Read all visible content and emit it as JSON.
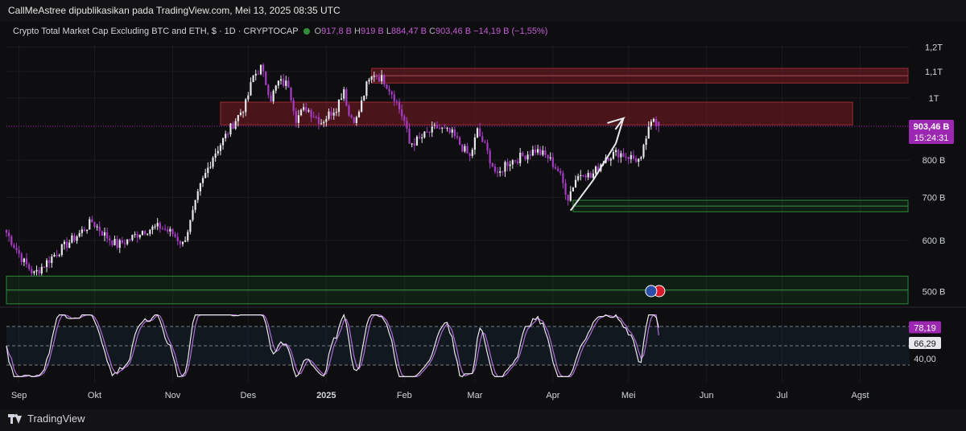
{
  "header": {
    "publisher_line": "CallMeAstree dipublikasikan pada TradingView.com, Mei 13, 2025 08:35 UTC"
  },
  "legend": {
    "symbol": "Crypto Total Market Cap Excluding BTC and ETH, $ · 1D · CRYPTOCAP",
    "o_label": "O",
    "o_value": "917,8 B",
    "h_label": "H",
    "h_value": "919 B",
    "l_label": "L",
    "l_value": "884,47 B",
    "c_label": "C",
    "c_value": "903,46 B",
    "change": "−14,19 B (−1,55%)"
  },
  "footer": {
    "brand": "TradingView"
  },
  "colors": {
    "background": "#0e0e10",
    "up_candle": "#e8e8ec",
    "down_candle": "#a93bc8",
    "resistance_zone": "#7a1c24",
    "support_zone": "#1b6e25",
    "price_label": "#9c27b0",
    "stoch_k": "#e8e8ec",
    "stoch_d": "#b26bd9",
    "arrow": "#e8e8ec"
  },
  "chart_data": [
    {
      "type": "candlestick",
      "title": "Crypto Total Market Cap Excluding BTC and ETH, $ · 1D · CRYPTOCAP",
      "y_unit": "USD",
      "y_scale": "log",
      "y_ticks": [
        {
          "value": 500000000000.0,
          "label": "500 B"
        },
        {
          "value": 600000000000.0,
          "label": "600 B"
        },
        {
          "value": 700000000000.0,
          "label": "700 B"
        },
        {
          "value": 800000000000.0,
          "label": "800 B"
        },
        {
          "value": 1000000000000.0,
          "label": "1T"
        },
        {
          "value": 1100000000000.0,
          "label": "1,1T"
        },
        {
          "value": 1200000000000.0,
          "label": "1,2T"
        }
      ],
      "x_ticks": [
        {
          "date": "2024-09-01",
          "label": "Sep"
        },
        {
          "date": "2024-10-01",
          "label": "Okt"
        },
        {
          "date": "2024-11-01",
          "label": "Nov"
        },
        {
          "date": "2024-12-01",
          "label": "Des"
        },
        {
          "date": "2025-01-01",
          "label": "2025"
        },
        {
          "date": "2025-02-01",
          "label": "Feb"
        },
        {
          "date": "2025-03-01",
          "label": "Mar"
        },
        {
          "date": "2025-04-01",
          "label": "Apr"
        },
        {
          "date": "2025-05-01",
          "label": "Mei"
        },
        {
          "date": "2025-06-01",
          "label": "Jun"
        },
        {
          "date": "2025-07-01",
          "label": "Jul"
        },
        {
          "date": "2025-08-01",
          "label": "Agst"
        }
      ],
      "x_range": [
        "2024-08-27",
        "2025-08-20"
      ],
      "close_path": [
        [
          "2024-08-27",
          617000000000.0
        ],
        [
          "2024-09-03",
          555000000000.0
        ],
        [
          "2024-09-07",
          532000000000.0
        ],
        [
          "2024-09-15",
          570000000000.0
        ],
        [
          "2024-09-25",
          615000000000.0
        ],
        [
          "2024-09-30",
          642000000000.0
        ],
        [
          "2024-10-05",
          612000000000.0
        ],
        [
          "2024-10-10",
          590000000000.0
        ],
        [
          "2024-10-15",
          603000000000.0
        ],
        [
          "2024-10-20",
          622000000000.0
        ],
        [
          "2024-10-27",
          630000000000.0
        ],
        [
          "2024-11-01",
          615000000000.0
        ],
        [
          "2024-11-05",
          592000000000.0
        ],
        [
          "2024-11-08",
          640000000000.0
        ],
        [
          "2024-11-12",
          728000000000.0
        ],
        [
          "2024-11-17",
          812000000000.0
        ],
        [
          "2024-11-22",
          872000000000.0
        ],
        [
          "2024-11-26",
          925000000000.0
        ],
        [
          "2024-11-30",
          978000000000.0
        ],
        [
          "2024-12-03",
          1080000000000.0
        ],
        [
          "2024-12-06",
          1115000000000.0
        ],
        [
          "2024-12-10",
          1000000000000.0
        ],
        [
          "2024-12-13",
          1058000000000.0
        ],
        [
          "2024-12-17",
          1050000000000.0
        ],
        [
          "2024-12-20",
          930000000000.0
        ],
        [
          "2024-12-24",
          965000000000.0
        ],
        [
          "2024-12-30",
          918000000000.0
        ],
        [
          "2025-01-05",
          968000000000.0
        ],
        [
          "2025-01-08",
          1035000000000.0
        ],
        [
          "2025-01-10",
          940000000000.0
        ],
        [
          "2025-01-13",
          925000000000.0
        ],
        [
          "2025-01-17",
          1045000000000.0
        ],
        [
          "2025-01-20",
          1090000000000.0
        ],
        [
          "2025-01-24",
          1065000000000.0
        ],
        [
          "2025-01-28",
          1005000000000.0
        ],
        [
          "2025-02-01",
          920000000000.0
        ],
        [
          "2025-02-03",
          848000000000.0
        ],
        [
          "2025-02-07",
          862000000000.0
        ],
        [
          "2025-02-10",
          880000000000.0
        ],
        [
          "2025-02-14",
          900000000000.0
        ],
        [
          "2025-02-20",
          878000000000.0
        ],
        [
          "2025-02-24",
          838000000000.0
        ],
        [
          "2025-02-27",
          808000000000.0
        ],
        [
          "2025-03-02",
          888000000000.0
        ],
        [
          "2025-03-05",
          840000000000.0
        ],
        [
          "2025-03-10",
          752000000000.0
        ],
        [
          "2025-03-13",
          790000000000.0
        ],
        [
          "2025-03-18",
          805000000000.0
        ],
        [
          "2025-03-25",
          830000000000.0
        ],
        [
          "2025-03-30",
          808000000000.0
        ],
        [
          "2025-04-03",
          772000000000.0
        ],
        [
          "2025-04-07",
          700000000000.0
        ],
        [
          "2025-04-10",
          748000000000.0
        ],
        [
          "2025-04-13",
          770000000000.0
        ],
        [
          "2025-04-16",
          752000000000.0
        ],
        [
          "2025-04-22",
          810000000000.0
        ],
        [
          "2025-04-27",
          822000000000.0
        ],
        [
          "2025-05-02",
          808000000000.0
        ],
        [
          "2025-05-06",
          798000000000.0
        ],
        [
          "2025-05-08",
          868000000000.0
        ],
        [
          "2025-05-11",
          930000000000.0
        ],
        [
          "2025-05-13",
          903460000000.0
        ]
      ],
      "last_candle": {
        "open": 917800000000.0,
        "high": 919000000000.0,
        "low": 884470000000.0,
        "close": 903460000000.0
      },
      "zones": [
        {
          "kind": "resistance",
          "from": "2025-01-19",
          "to": "2025-08-20",
          "low": 1055000000000.0,
          "high": 1112000000000.0
        },
        {
          "kind": "resistance",
          "from": "2024-11-20",
          "to": "2025-07-29",
          "low": 908000000000.0,
          "high": 985000000000.0
        },
        {
          "kind": "support",
          "from": "2025-04-09",
          "to": "2025-08-20",
          "low": 665000000000.0,
          "high": 693000000000.0
        },
        {
          "kind": "support",
          "from": "2024-08-27",
          "to": "2025-08-20",
          "low": 478000000000.0,
          "high": 528000000000.0
        }
      ],
      "arrow": [
        [
          "2025-04-08",
          668000000000.0
        ],
        [
          "2025-04-17",
          745000000000.0
        ],
        [
          "2025-04-26",
          850000000000.0
        ],
        [
          "2025-04-29",
          930000000000.0
        ]
      ],
      "price_label": {
        "value": "903,46 B",
        "countdown": "15:24:31"
      }
    },
    {
      "type": "line",
      "title": "",
      "y_range": [
        0,
        100
      ],
      "y_ticks": [
        {
          "value": 40,
          "label": "40,00"
        }
      ],
      "bands": {
        "upper": 80,
        "middle": 50,
        "lower": 20
      },
      "series": [
        {
          "role": "k",
          "last_value_label": "78,19"
        },
        {
          "role": "d",
          "last_value_label": "66,29"
        }
      ]
    }
  ]
}
